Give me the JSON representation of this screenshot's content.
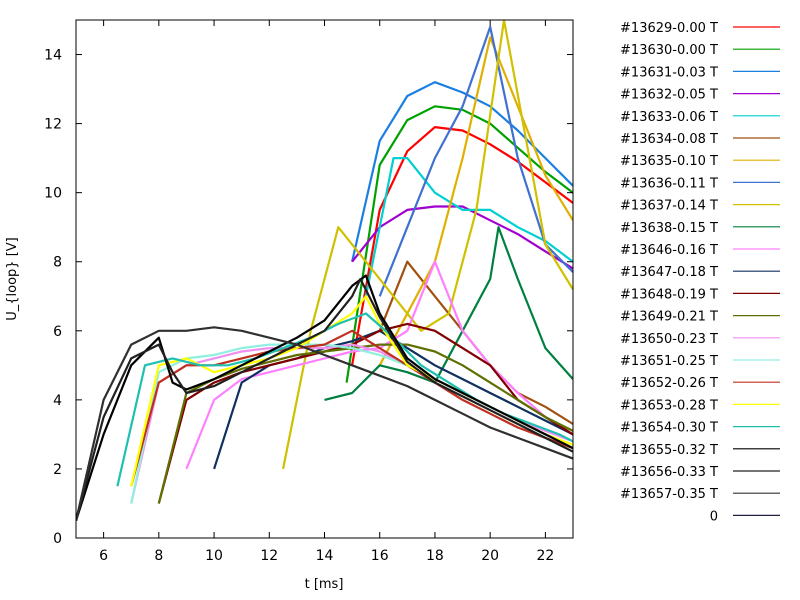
{
  "chart_data": {
    "type": "line",
    "xlabel": "t [ms]",
    "ylabel": "U_{loop} [V]",
    "xlim": [
      5,
      23
    ],
    "ylim": [
      0,
      15
    ],
    "xticks": [
      6,
      8,
      10,
      12,
      14,
      16,
      18,
      20,
      22
    ],
    "yticks": [
      0,
      2,
      4,
      6,
      8,
      10,
      12,
      14
    ],
    "grid": false,
    "legend_position": "right",
    "series": [
      {
        "name": "#13629-0.00 T",
        "color": "#ff0000",
        "x": [
          15.0,
          16.0,
          17.0,
          18.0,
          19.0,
          20.0,
          21.0,
          22.0,
          23.0
        ],
        "y": [
          5.0,
          9.5,
          11.2,
          11.9,
          11.8,
          11.4,
          10.9,
          10.3,
          9.7
        ]
      },
      {
        "name": "#13630-0.00 T",
        "color": "#00a000",
        "x": [
          14.8,
          16.0,
          17.0,
          18.0,
          19.0,
          20.0,
          21.0,
          22.0,
          23.0
        ],
        "y": [
          4.5,
          10.8,
          12.1,
          12.5,
          12.4,
          12.0,
          11.3,
          10.6,
          10.0
        ]
      },
      {
        "name": "#13631-0.03 T",
        "color": "#1a7fe0",
        "x": [
          15.0,
          16.0,
          17.0,
          18.0,
          19.0,
          20.0,
          21.0,
          22.0,
          23.0
        ],
        "y": [
          8.0,
          11.5,
          12.8,
          13.2,
          12.9,
          12.5,
          11.8,
          11.0,
          10.2
        ]
      },
      {
        "name": "#13632-0.05 T",
        "color": "#a000d0",
        "x": [
          15.0,
          16.0,
          17.0,
          18.0,
          19.0,
          20.0,
          21.0,
          22.0,
          23.0
        ],
        "y": [
          8.0,
          9.0,
          9.5,
          9.6,
          9.6,
          9.2,
          8.8,
          8.3,
          7.8
        ]
      },
      {
        "name": "#13633-0.06 T",
        "color": "#00d0d0",
        "x": [
          15.5,
          16.5,
          17.0,
          18.0,
          19.0,
          20.0,
          21.0,
          22.0,
          23.0
        ],
        "y": [
          7.0,
          11.0,
          11.0,
          10.0,
          9.5,
          9.5,
          9.0,
          8.6,
          8.0
        ]
      },
      {
        "name": "#13634-0.08 T",
        "color": "#a05010",
        "x": [
          16.0,
          17.0,
          18.0,
          19.0,
          20.0,
          21.0,
          22.0,
          23.0
        ],
        "y": [
          6.0,
          8.0,
          7.0,
          6.0,
          5.0,
          4.2,
          3.8,
          3.3
        ]
      },
      {
        "name": "#13635-0.10 T",
        "color": "#e0b000",
        "x": [
          16.0,
          18.0,
          19.0,
          20.0,
          21.0,
          22.0,
          23.0
        ],
        "y": [
          5.0,
          8.0,
          11.0,
          14.5,
          12.5,
          10.5,
          9.2
        ]
      },
      {
        "name": "#13636-0.11 T",
        "color": "#4070d0",
        "x": [
          16.0,
          17.0,
          18.0,
          19.0,
          20.0,
          21.0,
          22.0,
          23.0
        ],
        "y": [
          7.0,
          9.0,
          11.0,
          12.5,
          14.8,
          11.0,
          8.5,
          7.7
        ]
      },
      {
        "name": "#13637-0.14 T",
        "color": "#d0c000",
        "x": [
          12.5,
          13.5,
          14.5,
          15.5,
          16.5,
          17.5,
          18.5,
          19.5,
          20.5,
          22.0,
          23.0
        ],
        "y": [
          2.0,
          6.0,
          9.0,
          8.0,
          7.0,
          6.0,
          6.5,
          9.5,
          15.0,
          8.5,
          7.2
        ]
      },
      {
        "name": "#13638-0.15 T",
        "color": "#008040",
        "x": [
          14.0,
          15.0,
          16.0,
          17.0,
          18.0,
          19.0,
          20.0,
          20.3,
          21.0,
          22.0,
          23.0
        ],
        "y": [
          4.0,
          4.2,
          5.0,
          4.8,
          4.5,
          6.0,
          7.5,
          9.0,
          7.5,
          5.5,
          4.6
        ]
      },
      {
        "name": "#13646-0.16 T",
        "color": "#ff80ff",
        "x": [
          9.0,
          10.0,
          11.0,
          12.0,
          13.0,
          14.0,
          15.0,
          16.0,
          17.0,
          18.0,
          19.0,
          20.0,
          21.0,
          22.0,
          23.0
        ],
        "y": [
          2.0,
          4.0,
          4.6,
          4.8,
          5.0,
          5.2,
          5.4,
          5.5,
          6.0,
          8.0,
          6.0,
          5.0,
          4.2,
          3.5,
          3.0
        ]
      },
      {
        "name": "#13647-0.18 T",
        "color": "#103060",
        "x": [
          10.0,
          11.0,
          12.0,
          13.0,
          14.0,
          15.0,
          16.0,
          17.0,
          18.0,
          19.0,
          20.0,
          21.0,
          22.0,
          23.0
        ],
        "y": [
          2.0,
          4.5,
          5.0,
          5.2,
          5.5,
          5.7,
          6.0,
          5.5,
          5.0,
          4.6,
          4.2,
          3.8,
          3.4,
          3.0
        ]
      },
      {
        "name": "#13648-0.19 T",
        "color": "#800000",
        "x": [
          8.0,
          9.0,
          10.0,
          11.0,
          12.0,
          13.0,
          14.0,
          15.0,
          16.0,
          17.0,
          18.0,
          19.0,
          20.0,
          21.0,
          22.0,
          23.0
        ],
        "y": [
          1.0,
          4.0,
          4.5,
          4.8,
          5.0,
          5.2,
          5.4,
          5.6,
          6.0,
          6.2,
          6.0,
          5.5,
          5.0,
          4.0,
          3.5,
          3.0
        ]
      },
      {
        "name": "#13649-0.21 T",
        "color": "#607000",
        "x": [
          8.0,
          9.0,
          10.0,
          11.0,
          12.0,
          13.0,
          14.0,
          15.0,
          16.0,
          17.0,
          18.0,
          19.0,
          20.0,
          21.0,
          22.0,
          23.0
        ],
        "y": [
          1.0,
          4.2,
          4.6,
          4.9,
          5.1,
          5.3,
          5.4,
          5.5,
          5.6,
          5.6,
          5.4,
          5.0,
          4.5,
          4.0,
          3.5,
          3.1
        ]
      },
      {
        "name": "#13650-0.23 T",
        "color": "#f090f0",
        "x": [
          7.0,
          8.0,
          9.0,
          10.0,
          11.0,
          12.0,
          13.0,
          14.0,
          15.0,
          16.0,
          17.0,
          18.0,
          19.0,
          20.0,
          21.0,
          22.0,
          23.0
        ],
        "y": [
          1.0,
          4.5,
          5.0,
          5.2,
          5.4,
          5.5,
          5.5,
          5.5,
          5.6,
          5.4,
          5.0,
          4.6,
          4.2,
          3.8,
          3.4,
          3.1,
          2.8
        ]
      },
      {
        "name": "#13651-0.25 T",
        "color": "#90f0e0",
        "x": [
          7.0,
          8.0,
          9.0,
          10.0,
          11.0,
          12.0,
          13.0,
          14.0,
          15.0,
          16.0,
          17.0,
          18.0,
          19.0,
          20.0,
          21.0,
          22.0,
          23.0
        ],
        "y": [
          1.0,
          4.8,
          5.2,
          5.3,
          5.5,
          5.6,
          5.6,
          5.6,
          5.5,
          5.3,
          5.0,
          4.6,
          4.2,
          3.8,
          3.4,
          3.0,
          2.7
        ]
      },
      {
        "name": "#13652-0.26 T",
        "color": "#c03020",
        "x": [
          7.0,
          8.0,
          9.0,
          10.0,
          11.0,
          12.0,
          13.0,
          14.0,
          15.0,
          16.0,
          17.0,
          18.0,
          19.0,
          20.0,
          21.0,
          22.0,
          23.0
        ],
        "y": [
          1.5,
          4.5,
          5.0,
          5.0,
          5.2,
          5.4,
          5.5,
          5.6,
          6.0,
          5.5,
          5.0,
          4.5,
          4.0,
          3.6,
          3.2,
          2.9,
          2.6
        ]
      },
      {
        "name": "#13653-0.28 T",
        "color": "#ffff00",
        "x": [
          7.0,
          8.0,
          9.0,
          10.0,
          11.0,
          12.0,
          13.0,
          14.0,
          15.0,
          15.5,
          16.0,
          17.0,
          18.0,
          19.0,
          20.0,
          21.0,
          22.0,
          23.0
        ],
        "y": [
          1.5,
          5.0,
          5.2,
          4.8,
          5.0,
          5.2,
          5.5,
          6.0,
          6.5,
          7.0,
          6.2,
          5.0,
          4.6,
          4.2,
          3.8,
          3.4,
          3.0,
          2.7
        ]
      },
      {
        "name": "#13654-0.30 T",
        "color": "#20c0b0",
        "x": [
          6.5,
          7.5,
          8.5,
          9.5,
          10.5,
          11.5,
          12.5,
          13.5,
          14.5,
          15.5,
          16.5,
          17.5,
          18.5,
          19.5,
          20.5,
          21.5,
          22.5,
          23.0
        ],
        "y": [
          1.5,
          5.0,
          5.2,
          5.0,
          5.0,
          5.2,
          5.5,
          5.8,
          6.2,
          6.5,
          5.8,
          5.0,
          4.5,
          4.0,
          3.6,
          3.3,
          3.0,
          2.8
        ]
      },
      {
        "name": "#13655-0.32 T",
        "color": "#000000",
        "x": [
          5.0,
          6.0,
          7.0,
          8.0,
          8.5,
          9.0,
          10.0,
          11.0,
          12.0,
          13.0,
          14.0,
          15.0,
          15.5,
          16.0,
          17.0,
          18.0,
          19.0,
          20.0,
          21.0,
          22.0,
          23.0
        ],
        "y": [
          0.5,
          3.0,
          5.0,
          5.8,
          4.5,
          4.3,
          4.6,
          5.0,
          5.4,
          5.8,
          6.3,
          7.3,
          7.6,
          6.5,
          5.2,
          4.6,
          4.2,
          3.8,
          3.4,
          3.0,
          2.6
        ]
      },
      {
        "name": "#13656-0.33 T",
        "color": "#202020",
        "x": [
          5.0,
          6.0,
          7.0,
          8.0,
          8.5,
          9.0,
          10.0,
          11.0,
          12.0,
          13.0,
          14.0,
          15.0,
          15.3,
          16.0,
          17.0,
          18.0,
          19.0,
          20.0,
          21.0,
          22.0,
          23.0
        ],
        "y": [
          0.5,
          3.5,
          5.2,
          5.6,
          4.8,
          4.2,
          4.4,
          4.8,
          5.2,
          5.6,
          6.0,
          7.0,
          7.5,
          6.4,
          5.1,
          4.5,
          4.1,
          3.7,
          3.3,
          2.9,
          2.5
        ]
      },
      {
        "name": "#13657-0.35 T",
        "color": "#303030",
        "x": [
          5.0,
          6.0,
          7.0,
          8.0,
          9.0,
          10.0,
          11.0,
          12.0,
          13.0,
          14.0,
          15.0,
          16.0,
          17.0,
          18.0,
          19.0,
          20.0,
          21.0,
          22.0,
          23.0
        ],
        "y": [
          0.5,
          4.0,
          5.6,
          6.0,
          6.0,
          6.1,
          6.0,
          5.8,
          5.6,
          5.3,
          5.0,
          4.7,
          4.4,
          4.0,
          3.6,
          3.2,
          2.9,
          2.6,
          2.3
        ]
      },
      {
        "name": "0",
        "color": "#202040",
        "x": [],
        "y": []
      }
    ]
  }
}
